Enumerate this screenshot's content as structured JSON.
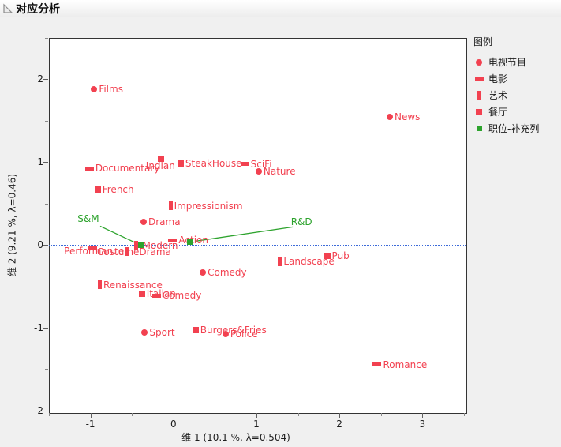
{
  "window": {
    "title": "对应分析"
  },
  "colors": {
    "category_red": "#F24150",
    "supplementary_green": "#2DA32D",
    "reference_blue": "#3D6BD9"
  },
  "legend": {
    "title": "图例",
    "items": [
      {
        "key": "tv",
        "label": "电视节目",
        "marker": "circle",
        "color": "#F24150"
      },
      {
        "key": "movie",
        "label": "电影",
        "marker": "hbar",
        "color": "#F24150"
      },
      {
        "key": "art",
        "label": "艺术",
        "marker": "vbar",
        "color": "#F24150"
      },
      {
        "key": "restaurant",
        "label": "餐厅",
        "marker": "square",
        "color": "#F24150"
      },
      {
        "key": "job-supp",
        "label": "职位-补充列",
        "marker": "supp-square",
        "color": "#2DA32D"
      }
    ]
  },
  "chart_data": {
    "type": "scatter",
    "title": "对应分析",
    "xlabel": "维 1  (10.1 %, λ=0.504)",
    "ylabel": "维 2  (9.21 %, λ=0.46)",
    "xlim": [
      -1.5,
      3.52
    ],
    "ylim": [
      -2.02,
      2.5
    ],
    "x_ticks": [
      -1,
      0,
      1,
      2,
      3
    ],
    "x_minor_ticks": [
      -1.5,
      -0.5,
      0.5,
      1.5,
      2.5,
      3.5
    ],
    "y_ticks": [
      2,
      1,
      0,
      -1,
      -2
    ],
    "y_minor_ticks": [
      2.5,
      1.5,
      0.5,
      -0.5,
      -1.5
    ],
    "reference_lines": {
      "x": 0,
      "y": 0
    },
    "grid": false,
    "legend_position": "right",
    "series": [
      {
        "name": "电视节目",
        "marker": "circle",
        "color": "#F24150",
        "points": [
          {
            "label": "Films",
            "x": -0.955,
            "y": 1.883
          },
          {
            "label": "News",
            "x": 2.607,
            "y": 1.546
          },
          {
            "label": "Nature",
            "x": 1.028,
            "y": 0.891
          },
          {
            "label": "Drama",
            "x": -0.359,
            "y": 0.274
          },
          {
            "label": "Comedy",
            "x": 0.355,
            "y": -0.33
          },
          {
            "label": "Sport",
            "x": -0.346,
            "y": -1.055
          },
          {
            "label": "Police",
            "x": 0.628,
            "y": -1.074
          }
        ]
      },
      {
        "name": "电影",
        "marker": "hbar",
        "color": "#F24150",
        "points": [
          {
            "label": "Documentary",
            "x": -1.012,
            "y": 0.922
          },
          {
            "label": "SciFi",
            "x": 0.859,
            "y": 0.975
          },
          {
            "label": "CostumeDrama",
            "x": -0.972,
            "y": -0.034,
            "label_dx": -2,
            "label_dy": 5
          },
          {
            "label": "Action",
            "x": -0.008,
            "y": 0.055
          },
          {
            "label": "Comedy",
            "x": -0.204,
            "y": -0.611
          },
          {
            "label": "Romance",
            "x": 2.455,
            "y": -1.444
          }
        ]
      },
      {
        "name": "艺术",
        "marker": "vbar",
        "color": "#F24150",
        "points": [
          {
            "label": "Impressionism",
            "x": -0.035,
            "y": 0.471
          },
          {
            "label": "Modern",
            "x": -0.454,
            "y": -0.005,
            "label_dx": 4
          },
          {
            "label": "Performance",
            "x": -0.552,
            "y": -0.079,
            "label_side": "left"
          },
          {
            "label": "Renaissance",
            "x": -0.887,
            "y": -0.48
          },
          {
            "label": "Landscape",
            "x": 1.284,
            "y": -0.2
          }
        ]
      },
      {
        "name": "餐厅",
        "marker": "square",
        "color": "#F24150",
        "points": [
          {
            "label": "Indian",
            "x": -0.152,
            "y": 1.04,
            "label_dx": -25,
            "label_dy": 9
          },
          {
            "label": "SteakHouse",
            "x": 0.087,
            "y": 0.982
          },
          {
            "label": "French",
            "x": -0.913,
            "y": 0.672
          },
          {
            "label": "Italian",
            "x": -0.381,
            "y": -0.594
          },
          {
            "label": "Burgers&Fries",
            "x": 0.266,
            "y": -1.024
          },
          {
            "label": "Pub",
            "x": 1.852,
            "y": -0.134
          }
        ]
      },
      {
        "name": "职位-补充列",
        "marker": "supp-square",
        "color": "#2DA32D",
        "points": [
          {
            "label": "S&M",
            "x": -0.397,
            "y": -0.005,
            "label_x": -1.025,
            "label_y": 0.312,
            "line": [
              [
                -0.882,
                0.226
              ],
              [
                -0.416,
                0.007
              ]
            ]
          },
          {
            "label": "R&D",
            "x": 0.196,
            "y": 0.038,
            "label_x": 1.544,
            "label_y": 0.277,
            "line": [
              [
                1.44,
                0.217
              ],
              [
                0.26,
                0.045
              ]
            ]
          }
        ]
      }
    ]
  }
}
